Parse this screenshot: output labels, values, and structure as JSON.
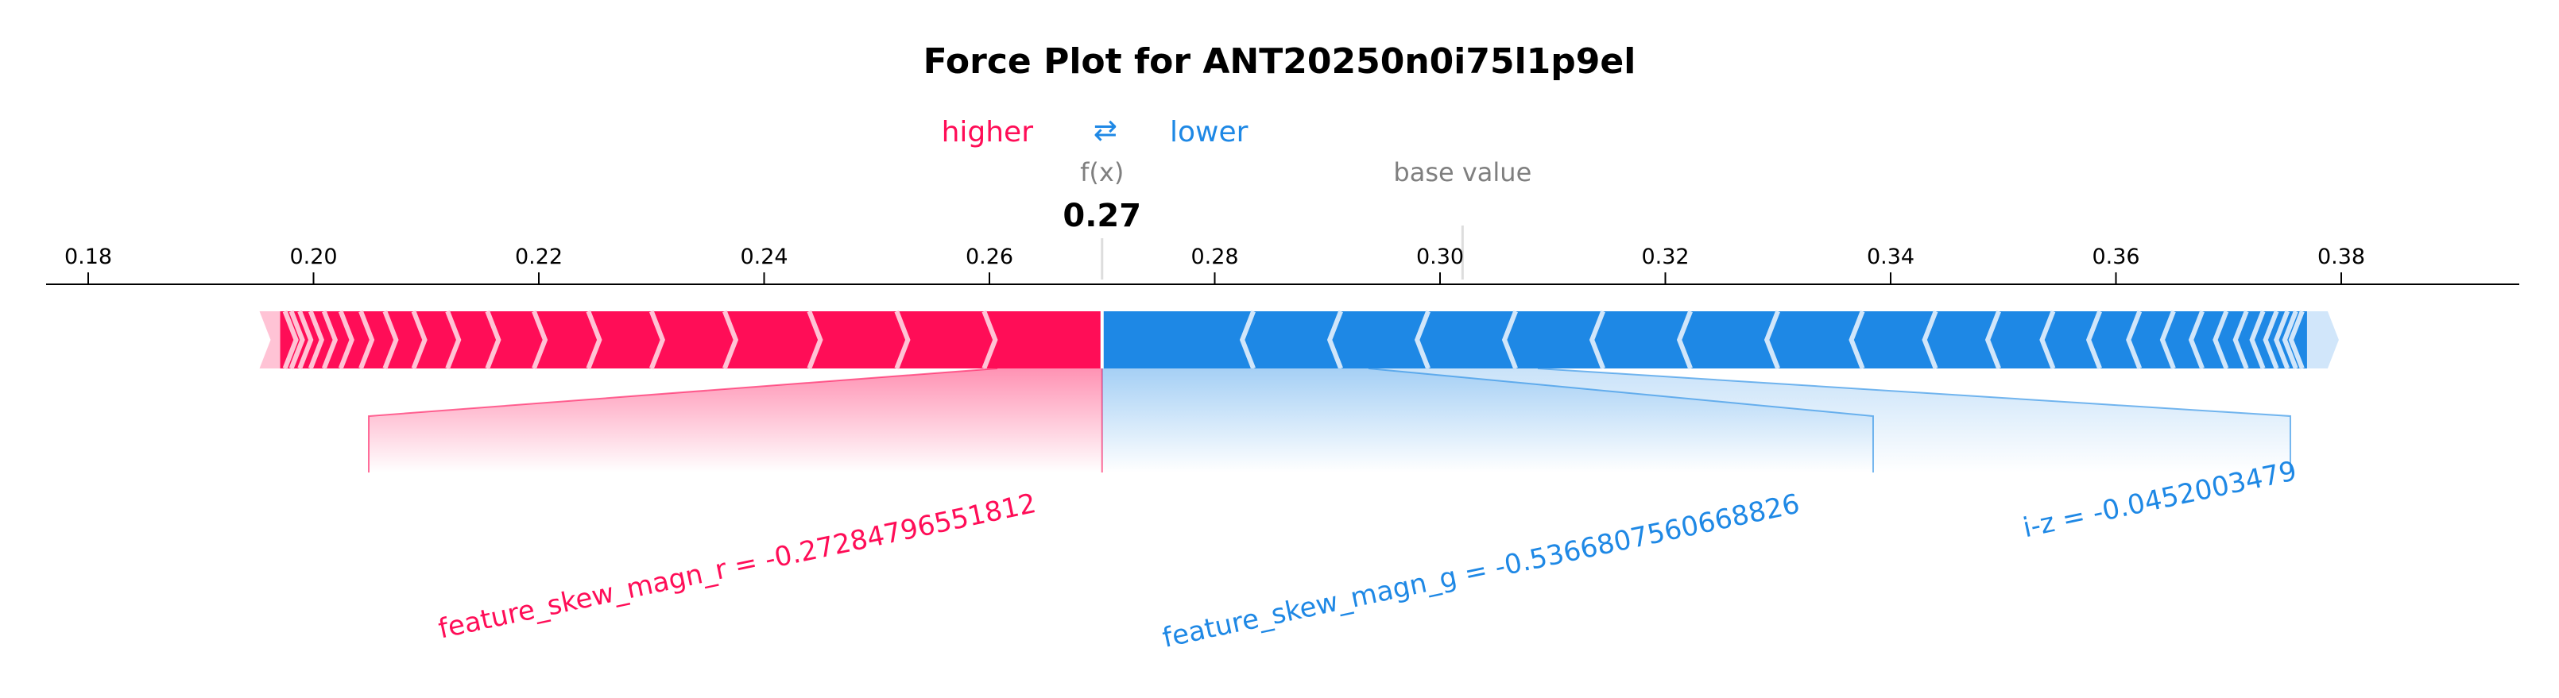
{
  "chart_data": {
    "type": "force",
    "title": "Force Plot for ANT20250n0i75l1p9el",
    "legend": {
      "higher": "higher",
      "lower": "lower",
      "arrow_glyph": "⇄"
    },
    "fx_label": "f(x)",
    "fx_value": 0.27,
    "fx_display": "0.27",
    "base_value_label": "base value",
    "base_value": 0.302,
    "xlim": [
      0.1765,
      0.3935
    ],
    "ticks": [
      0.18,
      0.2,
      0.22,
      0.24,
      0.26,
      0.28,
      0.3,
      0.32,
      0.34,
      0.36,
      0.38
    ],
    "tick_labels": [
      "0.18",
      "0.20",
      "0.22",
      "0.24",
      "0.26",
      "0.28",
      "0.30",
      "0.32",
      "0.34",
      "0.36",
      "0.38"
    ],
    "bar_range": [
      0.1945,
      0.3795
    ],
    "positive_features": [
      {
        "label": "feature_skew_magn_r = -0.27284796551812",
        "start": 0.1945,
        "end": 0.27
      }
    ],
    "negative_features": [
      {
        "label": "feature_skew_magn_g = -0.5366807560668826",
        "start": 0.27,
        "end": 0.338
      },
      {
        "label": "i-z = -0.0452003479",
        "start": 0.338,
        "end": 0.3795
      }
    ],
    "colors": {
      "positive": "#ff0d57",
      "negative": "#1e88e5",
      "positive_light": "#ffc3d5",
      "negative_light": "#d1e6fa"
    }
  }
}
